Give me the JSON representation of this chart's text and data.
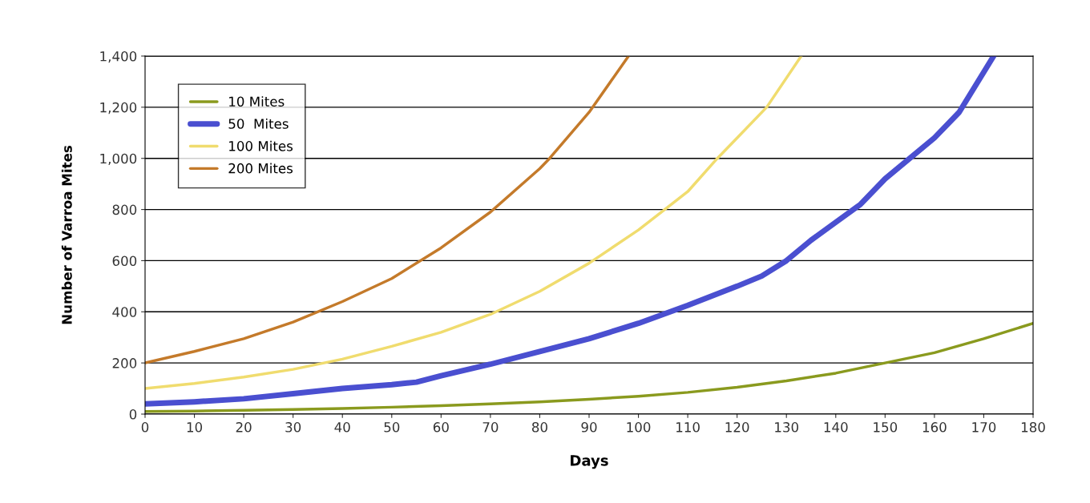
{
  "chart_data": {
    "type": "line",
    "xlabel": "Days",
    "ylabel": "Number of Varroa Mites",
    "xlim": [
      0,
      180
    ],
    "xticks": [
      0,
      10,
      20,
      30,
      40,
      50,
      60,
      70,
      80,
      90,
      100,
      110,
      120,
      130,
      140,
      150,
      160,
      170,
      180
    ],
    "ylim": [
      0,
      1400
    ],
    "yticks": [
      0,
      {
        "value": 200,
        "label": "200"
      },
      {
        "value": 400,
        "label": "400"
      },
      {
        "value": 600,
        "label": "600"
      },
      {
        "value": 800,
        "label": "800"
      },
      {
        "value": 1000,
        "label": "1,000"
      },
      {
        "value": 1200,
        "label": "1,200"
      },
      {
        "value": 1400,
        "label": "1,400"
      }
    ],
    "grid": "y",
    "legend": "top left",
    "marker": "none",
    "line_style": "solid",
    "series": [
      {
        "name": "10 Mites",
        "color": "#8a9a1e",
        "x": [
          0,
          10,
          20,
          30,
          40,
          50,
          60,
          70,
          80,
          90,
          100,
          110,
          120,
          130,
          140,
          150,
          160,
          170,
          180
        ],
        "values": [
          10,
          12,
          15,
          18,
          22,
          27,
          33,
          40,
          48,
          58,
          70,
          85,
          105,
          130,
          160,
          200,
          240,
          295,
          355
        ]
      },
      {
        "name": "50  Mites",
        "color": "#4a4fd0",
        "x": [
          0,
          10,
          20,
          30,
          40,
          50,
          55,
          60,
          70,
          80,
          90,
          100,
          110,
          120,
          125,
          130,
          135,
          140,
          145,
          150,
          160,
          165,
          172
        ],
        "values": [
          40,
          48,
          60,
          80,
          100,
          115,
          125,
          150,
          195,
          245,
          295,
          355,
          425,
          500,
          540,
          600,
          680,
          750,
          820,
          920,
          1080,
          1180,
          1400
        ]
      },
      {
        "name": "100 Mites",
        "color": "#f0dc6e",
        "x": [
          0,
          10,
          20,
          30,
          40,
          50,
          60,
          70,
          80,
          90,
          100,
          110,
          116,
          120,
          126,
          133
        ],
        "values": [
          100,
          120,
          145,
          175,
          215,
          265,
          320,
          390,
          480,
          590,
          720,
          870,
          1000,
          1080,
          1200,
          1400
        ]
      },
      {
        "name": "200 Mites",
        "color": "#c47a2a",
        "x": [
          0,
          10,
          20,
          30,
          40,
          50,
          60,
          70,
          80,
          82,
          90,
          98
        ],
        "values": [
          200,
          245,
          295,
          360,
          440,
          530,
          650,
          790,
          960,
          1000,
          1180,
          1400
        ]
      }
    ]
  }
}
